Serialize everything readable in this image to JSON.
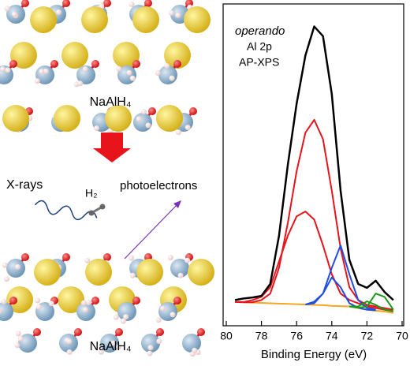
{
  "labels": {
    "top_material": "NaAlH₄",
    "bottom_material": "NaAlH₄",
    "xrays": "X-rays",
    "h2": "H₂",
    "photoelectrons": "photoelectrons"
  },
  "chart_data": {
    "type": "line",
    "annotations": [
      "operando",
      "Al 2p",
      "AP-XPS"
    ],
    "x_label": "Binding Energy (eV)",
    "xlim": [
      80,
      70
    ],
    "xticks": [
      80,
      78,
      76,
      74,
      72,
      70
    ],
    "ylim": [
      0,
      100
    ],
    "x": [
      79.5,
      79,
      78.5,
      78,
      77.5,
      77,
      76.5,
      76,
      75.5,
      75,
      74.5,
      74,
      73.5,
      73,
      72.5,
      72,
      71.5,
      71,
      70.5
    ],
    "series": [
      {
        "color": "#f5a623",
        "values": [
          7.4,
          7.3,
          7.2,
          7.1,
          7,
          6.9,
          6.8,
          6.7,
          6.6,
          6.5,
          6.4,
          6.2,
          6.1,
          6,
          5.5,
          5,
          4.7,
          4.4,
          4
        ]
      },
      {
        "color": "#e8141c",
        "values": [
          7.4,
          7.3,
          7.3,
          8,
          10,
          18,
          32,
          48,
          60,
          64,
          58,
          42,
          24,
          12,
          8,
          6.5,
          6,
          5.5,
          5
        ]
      },
      {
        "color": "#e8141c",
        "values": [
          7.4,
          7.4,
          8,
          9,
          12,
          20,
          28,
          34,
          35.5,
          33,
          25,
          16,
          10,
          8,
          7,
          6,
          5.5,
          5,
          4.5
        ]
      },
      {
        "color": "#1f4fe0",
        "values": [
          null,
          null,
          null,
          null,
          null,
          null,
          null,
          null,
          6.6,
          7,
          10,
          18,
          25,
          16,
          8,
          5.5,
          5,
          null,
          null
        ]
      },
      {
        "color": "#1f4fe0",
        "values": [
          null,
          null,
          null,
          null,
          null,
          null,
          null,
          null,
          6.6,
          7.5,
          10,
          15,
          12,
          7,
          5.6,
          5,
          4.8,
          null,
          null
        ]
      },
      {
        "color": "#1a9a1a",
        "values": [
          null,
          null,
          null,
          null,
          null,
          null,
          null,
          null,
          null,
          null,
          null,
          null,
          null,
          6,
          5.6,
          6,
          10,
          9,
          5
        ]
      },
      {
        "color": "#1a9a1a",
        "values": [
          null,
          null,
          null,
          null,
          null,
          null,
          null,
          null,
          null,
          null,
          null,
          null,
          null,
          6,
          6,
          7.6,
          6.5,
          5,
          4.5
        ]
      },
      {
        "color": "#000000",
        "values": [
          8,
          8.5,
          8.8,
          9.3,
          13,
          28,
          50,
          69,
          84,
          93,
          90,
          72,
          42,
          20.5,
          13,
          11.8,
          14,
          10.5,
          8
        ]
      }
    ]
  }
}
